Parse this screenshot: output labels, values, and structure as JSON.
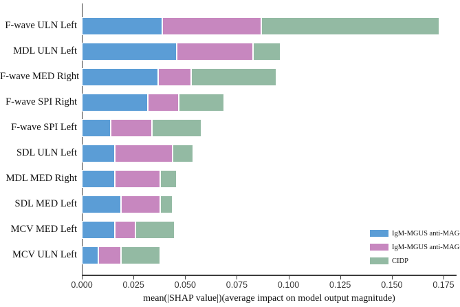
{
  "chart_data": {
    "type": "bar",
    "orientation": "horizontal",
    "stacked": true,
    "title": "",
    "xlabel": "mean(|SHAP value|)(average impact on model output magnitude)",
    "ylabel": "",
    "xlim": [
      0,
      0.181
    ],
    "grid": false,
    "xticks": [
      0.0,
      0.025,
      0.05,
      0.075,
      0.1,
      0.125,
      0.15,
      0.175
    ],
    "xtick_labels": [
      "0.000",
      "0.025",
      "0.050",
      "0.075",
      "0.100",
      "0.125",
      "0.150",
      "0.175"
    ],
    "categories": [
      "F-wave ULN Left",
      "MDL ULN Left",
      "F-wave MED Right",
      "F-wave SPI Right",
      "F-wave SPI Left",
      "SDL ULN Left",
      "MDL MED Right",
      "SDL MED Left",
      "MCV MED Left",
      "MCV ULN Left"
    ],
    "series": [
      {
        "name": "IgM-MGUS anti-MAG-",
        "color": "#5B9DD6",
        "values": [
          0.039,
          0.046,
          0.037,
          0.032,
          0.014,
          0.016,
          0.016,
          0.019,
          0.016,
          0.008
        ]
      },
      {
        "name": "IgM-MGUS anti-MAG+",
        "color": "#C787BF",
        "values": [
          0.048,
          0.037,
          0.016,
          0.015,
          0.02,
          0.028,
          0.022,
          0.019,
          0.01,
          0.011
        ]
      },
      {
        "name": "CIDP",
        "color": "#93BAA3",
        "values": [
          0.086,
          0.013,
          0.041,
          0.022,
          0.024,
          0.01,
          0.008,
          0.006,
          0.019,
          0.019
        ]
      }
    ],
    "totals": [
      0.173,
      0.096,
      0.094,
      0.069,
      0.058,
      0.054,
      0.046,
      0.044,
      0.043,
      0.038
    ],
    "legend": {
      "position": "lower right",
      "entries": [
        "IgM-MGUS anti-MAG-",
        "IgM-MGUS anti-MAG+",
        "CIDP"
      ]
    },
    "axis_color": "#3c3c3c"
  }
}
